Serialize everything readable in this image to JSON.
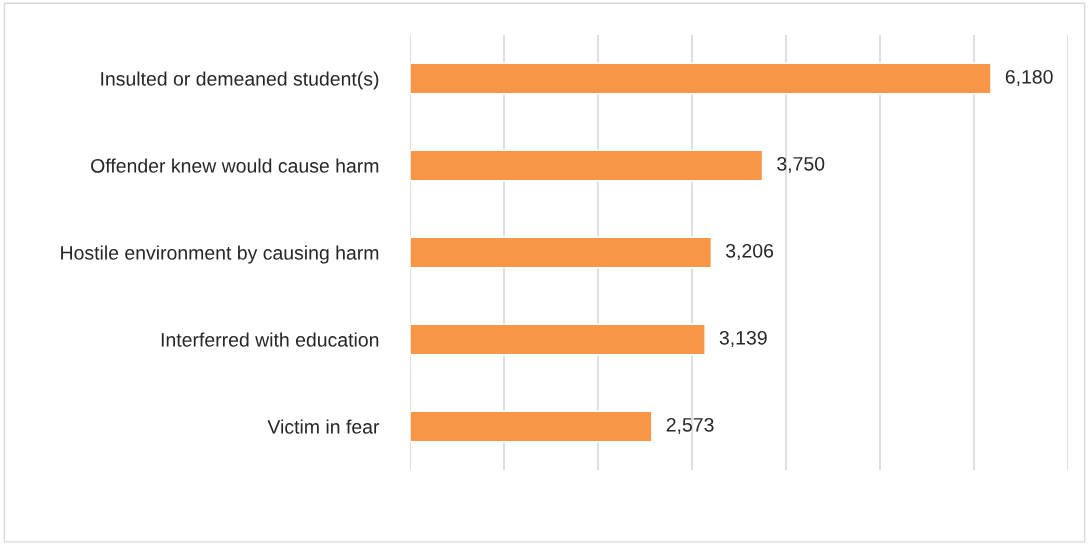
{
  "chart_data": {
    "type": "bar",
    "orientation": "horizontal",
    "categories": [
      "Insulted or demeaned student(s)",
      "Offender knew would cause harm",
      "Hostile environment by causing harm",
      "Interferred with education",
      "Victim in fear"
    ],
    "values": [
      6180,
      3750,
      3206,
      3139,
      2573
    ],
    "value_labels": [
      "6,180",
      "3,750",
      "3,206",
      "3,139",
      "2,573"
    ],
    "color": "#f79646",
    "xlim": [
      0,
      7000
    ],
    "xticks": [
      {
        "value": 0,
        "label": null
      },
      {
        "value": 1000,
        "label": null
      },
      {
        "value": 2000,
        "label": null
      },
      {
        "value": 3000,
        "label": null
      },
      {
        "value": 4000,
        "label": null
      },
      {
        "value": 5000,
        "label": null
      },
      {
        "value": 6000,
        "label": null
      },
      {
        "value": 7000,
        "label": null
      }
    ],
    "grid": "x",
    "tick_labels": "y",
    "legend": false
  }
}
